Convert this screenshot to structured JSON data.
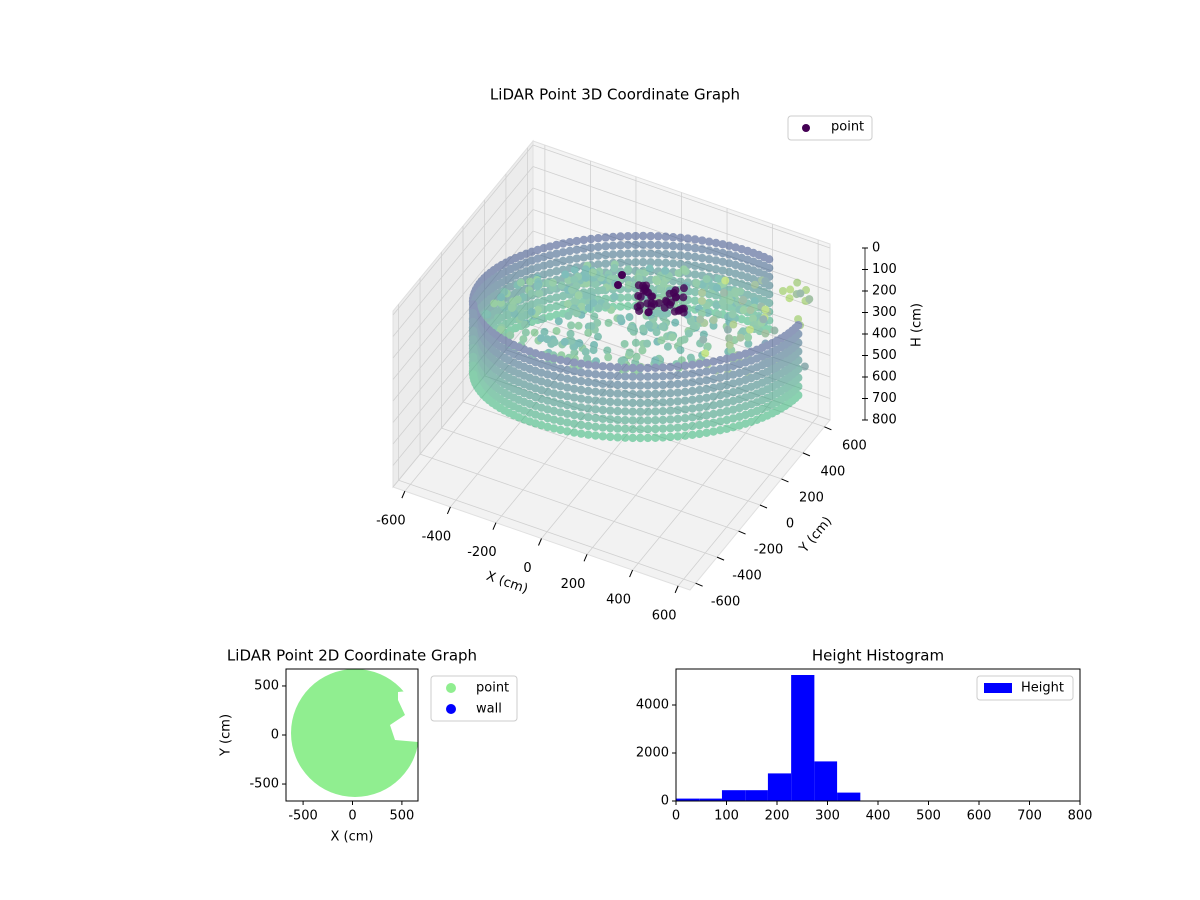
{
  "chart_data": [
    {
      "type": "scatter3d",
      "title": "LiDAR Point 3D Coordinate Graph",
      "xlabel": "X (cm)",
      "ylabel": "Y (cm)",
      "zlabel": "H (cm)",
      "xticks": [
        -600,
        -400,
        -200,
        0,
        200,
        400,
        600
      ],
      "yticks": [
        -600,
        -400,
        -200,
        0,
        200,
        400,
        600
      ],
      "zticks": [
        0,
        100,
        200,
        300,
        400,
        500,
        600,
        700,
        800
      ],
      "series": [
        {
          "name": "point",
          "color": "#440154"
        }
      ],
      "grid": true
    },
    {
      "type": "scatter",
      "title": "LiDAR Point 2D Coordinate Graph",
      "xlabel": "X (cm)",
      "ylabel": "Y (cm)",
      "xlim": [
        -673,
        663
      ],
      "ylim": [
        -673,
        673
      ],
      "xticks": [
        -500,
        0,
        500
      ],
      "yticks": [
        -500,
        0,
        500
      ],
      "series": [
        {
          "name": "point",
          "color": "#90ee90"
        },
        {
          "name": "wall",
          "color": "#0000ff"
        }
      ]
    },
    {
      "type": "histogram",
      "title": "Height Histogram",
      "bins": [
        0,
        46,
        91,
        137,
        182,
        228,
        274,
        319,
        365
      ],
      "series": [
        {
          "name": "Height",
          "color": "#0000ff",
          "values": [
            100,
            100,
            450,
            450,
            1150,
            5250,
            1650,
            350
          ]
        }
      ],
      "xlim": [
        0,
        800
      ],
      "xticks": [
        0,
        100,
        200,
        300,
        400,
        500,
        600,
        700,
        800
      ],
      "ylim": [
        0,
        5500
      ],
      "yticks": [
        0,
        2000,
        4000
      ]
    }
  ]
}
